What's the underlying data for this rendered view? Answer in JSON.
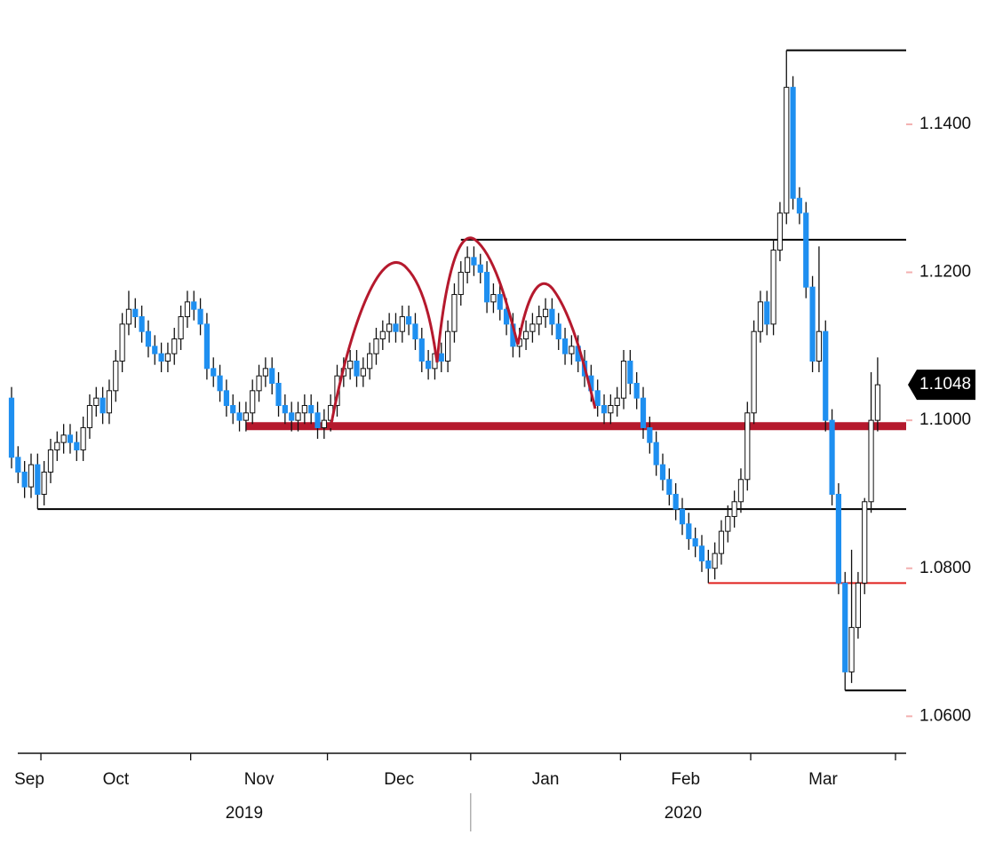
{
  "chart_data": {
    "type": "candlestick",
    "ylim": [
      1.055,
      1.1568
    ],
    "yticks": [
      {
        "value": 1.06,
        "label": "1.0600"
      },
      {
        "value": 1.08,
        "label": "1.0800"
      },
      {
        "value": 1.1,
        "label": "1.1000"
      },
      {
        "value": 1.12,
        "label": "1.1200"
      },
      {
        "value": 1.14,
        "label": "1.1400"
      }
    ],
    "up_color": "#ffffff",
    "down_color": "#1e8ff0",
    "months": [
      {
        "label": "Sep",
        "start": 0
      },
      {
        "label": "Oct",
        "start": 5
      },
      {
        "label": "Nov",
        "start": 28
      },
      {
        "label": "Dec",
        "start": 49
      },
      {
        "label": "Jan",
        "start": 71
      },
      {
        "label": "Feb",
        "start": 94
      },
      {
        "label": "Mar",
        "start": 114
      }
    ],
    "years": [
      {
        "label": "2019",
        "start": 0
      },
      {
        "label": "2020",
        "start": 71
      }
    ],
    "levels": [
      {
        "value": 1.15,
        "from": 119,
        "color": "#000000"
      },
      {
        "value": 1.1244,
        "from": 69,
        "color": "#000000"
      },
      {
        "value": 1.0992,
        "from": 36,
        "color": "#b5192d",
        "emphasis": true
      },
      {
        "value": 1.088,
        "from": 4,
        "color": "#000000"
      },
      {
        "value": 1.078,
        "from": 107,
        "color": "#e0201e"
      },
      {
        "value": 1.0635,
        "from": 128,
        "color": "#000000"
      }
    ],
    "ohlc": [
      [
        1.103,
        1.1045,
        1.0935,
        1.095
      ],
      [
        1.095,
        1.0965,
        1.0915,
        1.093
      ],
      [
        1.093,
        1.0945,
        1.0895,
        1.091
      ],
      [
        1.091,
        1.0955,
        1.0895,
        1.094
      ],
      [
        1.094,
        1.0955,
        1.088,
        1.09
      ],
      [
        1.09,
        1.0945,
        1.0885,
        1.093
      ],
      [
        1.093,
        1.0975,
        1.0915,
        1.096
      ],
      [
        1.096,
        1.0985,
        1.0945,
        1.097
      ],
      [
        1.097,
        1.0995,
        1.0955,
        1.098
      ],
      [
        1.098,
        1.0995,
        1.0955,
        1.097
      ],
      [
        1.097,
        1.0985,
        1.0945,
        1.096
      ],
      [
        1.096,
        1.1005,
        1.0945,
        1.099
      ],
      [
        1.099,
        1.1035,
        1.0975,
        1.102
      ],
      [
        1.102,
        1.1045,
        1.1005,
        1.103
      ],
      [
        1.103,
        1.1045,
        1.0995,
        1.101
      ],
      [
        1.101,
        1.1055,
        1.0995,
        1.104
      ],
      [
        1.104,
        1.1095,
        1.1025,
        1.108
      ],
      [
        1.108,
        1.1145,
        1.1065,
        1.113
      ],
      [
        1.113,
        1.1175,
        1.1115,
        1.115
      ],
      [
        1.115,
        1.1165,
        1.1125,
        1.114
      ],
      [
        1.114,
        1.1155,
        1.1105,
        1.112
      ],
      [
        1.112,
        1.1135,
        1.1085,
        1.11
      ],
      [
        1.11,
        1.1115,
        1.1075,
        1.109
      ],
      [
        1.109,
        1.1105,
        1.1065,
        1.108
      ],
      [
        1.108,
        1.1105,
        1.1065,
        1.109
      ],
      [
        1.109,
        1.1125,
        1.1075,
        1.111
      ],
      [
        1.111,
        1.1155,
        1.1095,
        1.114
      ],
      [
        1.114,
        1.1175,
        1.1125,
        1.116
      ],
      [
        1.116,
        1.1175,
        1.1135,
        1.115
      ],
      [
        1.115,
        1.1165,
        1.1115,
        1.113
      ],
      [
        1.113,
        1.1145,
        1.1055,
        1.107
      ],
      [
        1.107,
        1.1085,
        1.1045,
        1.106
      ],
      [
        1.106,
        1.1075,
        1.1025,
        1.104
      ],
      [
        1.104,
        1.1055,
        1.1005,
        1.102
      ],
      [
        1.102,
        1.1035,
        1.0995,
        1.101
      ],
      [
        1.101,
        1.1025,
        1.0985,
        1.1
      ],
      [
        1.1,
        1.1025,
        1.0985,
        1.101
      ],
      [
        1.101,
        1.1055,
        1.0995,
        1.104
      ],
      [
        1.104,
        1.1075,
        1.1025,
        1.106
      ],
      [
        1.106,
        1.1085,
        1.1045,
        1.107
      ],
      [
        1.107,
        1.1085,
        1.1035,
        1.105
      ],
      [
        1.105,
        1.1065,
        1.1005,
        1.102
      ],
      [
        1.102,
        1.1035,
        1.0995,
        1.101
      ],
      [
        1.101,
        1.1025,
        1.0985,
        1.1
      ],
      [
        1.1,
        1.1025,
        1.0985,
        1.101
      ],
      [
        1.101,
        1.1035,
        1.0995,
        1.102
      ],
      [
        1.102,
        1.1035,
        1.0995,
        1.101
      ],
      [
        1.101,
        1.1025,
        1.0975,
        1.099
      ],
      [
        1.099,
        1.1015,
        1.0975,
        1.1
      ],
      [
        1.1,
        1.1035,
        1.0985,
        1.102
      ],
      [
        1.102,
        1.1075,
        1.1005,
        1.106
      ],
      [
        1.106,
        1.1085,
        1.1045,
        1.107
      ],
      [
        1.107,
        1.1095,
        1.1055,
        1.108
      ],
      [
        1.108,
        1.1095,
        1.1045,
        1.106
      ],
      [
        1.106,
        1.1085,
        1.1045,
        1.107
      ],
      [
        1.107,
        1.1105,
        1.1055,
        1.109
      ],
      [
        1.109,
        1.1125,
        1.1075,
        1.111
      ],
      [
        1.111,
        1.1135,
        1.1095,
        1.112
      ],
      [
        1.112,
        1.1145,
        1.1105,
        1.113
      ],
      [
        1.113,
        1.1145,
        1.1105,
        1.112
      ],
      [
        1.112,
        1.1155,
        1.1105,
        1.114
      ],
      [
        1.114,
        1.1155,
        1.1115,
        1.113
      ],
      [
        1.113,
        1.1145,
        1.1095,
        1.111
      ],
      [
        1.111,
        1.1125,
        1.1065,
        1.108
      ],
      [
        1.108,
        1.1095,
        1.1055,
        1.107
      ],
      [
        1.107,
        1.1105,
        1.1055,
        1.109
      ],
      [
        1.109,
        1.1105,
        1.1065,
        1.108
      ],
      [
        1.108,
        1.1135,
        1.1065,
        1.112
      ],
      [
        1.112,
        1.1185,
        1.1105,
        1.117
      ],
      [
        1.117,
        1.1215,
        1.1155,
        1.12
      ],
      [
        1.12,
        1.1235,
        1.1185,
        1.122
      ],
      [
        1.122,
        1.1235,
        1.1195,
        1.121
      ],
      [
        1.121,
        1.1225,
        1.1185,
        1.12
      ],
      [
        1.12,
        1.1215,
        1.1145,
        1.116
      ],
      [
        1.116,
        1.1185,
        1.1145,
        1.117
      ],
      [
        1.117,
        1.1185,
        1.1135,
        1.115
      ],
      [
        1.115,
        1.1165,
        1.1115,
        1.113
      ],
      [
        1.113,
        1.1145,
        1.1085,
        1.11
      ],
      [
        1.11,
        1.1125,
        1.1085,
        1.111
      ],
      [
        1.111,
        1.1135,
        1.1095,
        1.112
      ],
      [
        1.112,
        1.1145,
        1.1105,
        1.113
      ],
      [
        1.113,
        1.1155,
        1.1115,
        1.114
      ],
      [
        1.114,
        1.1165,
        1.1125,
        1.115
      ],
      [
        1.115,
        1.1165,
        1.1115,
        1.113
      ],
      [
        1.113,
        1.1145,
        1.1095,
        1.111
      ],
      [
        1.111,
        1.1125,
        1.1075,
        1.109
      ],
      [
        1.109,
        1.1115,
        1.1075,
        1.11
      ],
      [
        1.11,
        1.1115,
        1.1065,
        1.108
      ],
      [
        1.108,
        1.1095,
        1.1045,
        1.106
      ],
      [
        1.106,
        1.1075,
        1.1025,
        1.104
      ],
      [
        1.104,
        1.1055,
        1.1005,
        1.102
      ],
      [
        1.102,
        1.1035,
        1.0995,
        1.101
      ],
      [
        1.101,
        1.1035,
        1.0995,
        1.102
      ],
      [
        1.102,
        1.1045,
        1.1005,
        1.103
      ],
      [
        1.103,
        1.1095,
        1.1015,
        1.108
      ],
      [
        1.108,
        1.1095,
        1.1035,
        1.105
      ],
      [
        1.105,
        1.1065,
        1.1015,
        1.103
      ],
      [
        1.103,
        1.1045,
        1.0975,
        1.099
      ],
      [
        1.099,
        1.1005,
        1.0955,
        1.097
      ],
      [
        1.097,
        1.0985,
        1.0925,
        1.094
      ],
      [
        1.094,
        1.0955,
        1.0905,
        1.092
      ],
      [
        1.092,
        1.0935,
        1.0885,
        1.09
      ],
      [
        1.09,
        1.0915,
        1.0865,
        1.088
      ],
      [
        1.088,
        1.0895,
        1.0845,
        1.086
      ],
      [
        1.086,
        1.0875,
        1.0825,
        1.084
      ],
      [
        1.084,
        1.0855,
        1.0815,
        1.083
      ],
      [
        1.083,
        1.0845,
        1.0795,
        1.081
      ],
      [
        1.081,
        1.0825,
        1.078,
        1.08
      ],
      [
        1.08,
        1.0835,
        1.0785,
        1.082
      ],
      [
        1.082,
        1.0865,
        1.0805,
        1.085
      ],
      [
        1.085,
        1.0885,
        1.0835,
        1.087
      ],
      [
        1.087,
        1.0905,
        1.0855,
        1.089
      ],
      [
        1.089,
        1.0935,
        1.0875,
        1.092
      ],
      [
        1.092,
        1.1025,
        1.0905,
        1.101
      ],
      [
        1.101,
        1.1135,
        1.0995,
        1.112
      ],
      [
        1.112,
        1.1175,
        1.1105,
        1.116
      ],
      [
        1.116,
        1.1175,
        1.1115,
        1.113
      ],
      [
        1.113,
        1.1245,
        1.1115,
        1.123
      ],
      [
        1.123,
        1.1295,
        1.1215,
        1.128
      ],
      [
        1.128,
        1.15,
        1.1265,
        1.145
      ],
      [
        1.145,
        1.1465,
        1.1285,
        1.13
      ],
      [
        1.13,
        1.1315,
        1.1265,
        1.128
      ],
      [
        1.128,
        1.1295,
        1.1165,
        1.118
      ],
      [
        1.118,
        1.1195,
        1.1065,
        1.108
      ],
      [
        1.108,
        1.1235,
        1.1065,
        1.112
      ],
      [
        1.112,
        1.1135,
        1.0985,
        1.1
      ],
      [
        1.1,
        1.1015,
        1.0885,
        1.09
      ],
      [
        1.09,
        1.0915,
        1.0765,
        1.078
      ],
      [
        1.078,
        1.0795,
        1.0635,
        1.066
      ],
      [
        1.066,
        1.0825,
        1.0645,
        1.072
      ],
      [
        1.072,
        1.0795,
        1.0705,
        1.078
      ],
      [
        1.078,
        1.0895,
        1.0765,
        1.089
      ],
      [
        1.089,
        1.1065,
        1.0875,
        1.1
      ],
      [
        1.1,
        1.1085,
        1.0985,
        1.1048
      ]
    ]
  }
}
